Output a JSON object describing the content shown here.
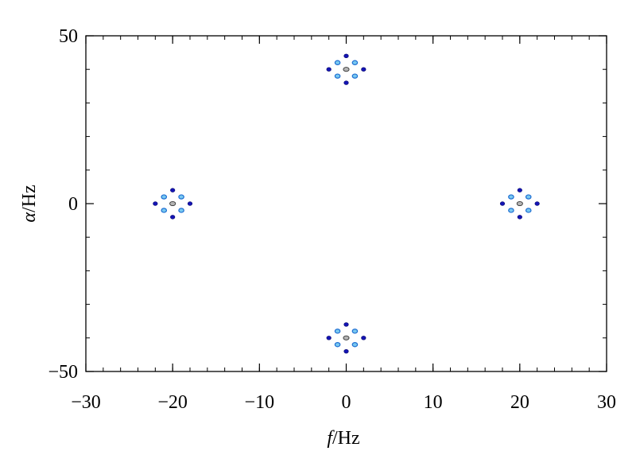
{
  "chart_data": {
    "type": "scatter",
    "title": "",
    "xlabel": {
      "symbol": "f",
      "unit": "/Hz"
    },
    "ylabel": {
      "symbol": "α",
      "unit": "/Hz"
    },
    "xlim": [
      -30,
      30
    ],
    "ylim": [
      -50,
      50
    ],
    "x_ticks": [
      {
        "value": -30,
        "label": "−30"
      },
      {
        "value": -20,
        "label": "−20"
      },
      {
        "value": -10,
        "label": "−10"
      },
      {
        "value": 0,
        "label": "0"
      },
      {
        "value": 10,
        "label": "10"
      },
      {
        "value": 20,
        "label": "20"
      },
      {
        "value": 30,
        "label": "30"
      }
    ],
    "y_ticks": [
      {
        "value": -50,
        "label": "−50"
      },
      {
        "value": 0,
        "label": "0"
      },
      {
        "value": 50,
        "label": "50"
      }
    ],
    "grid": false,
    "legend": "none",
    "colors": {
      "dark": "#1414b4",
      "mid": "#1e6ed2",
      "light": "#78c8f0",
      "center": "#b4b4b4"
    },
    "clusters": [
      {
        "f": 0,
        "alpha": 40
      },
      {
        "f": 0,
        "alpha": -40
      },
      {
        "f": -20,
        "alpha": 0
      },
      {
        "f": 20,
        "alpha": 0
      }
    ],
    "points": [
      {
        "f": 0,
        "alpha": 40,
        "level": "center"
      },
      {
        "f": 0,
        "alpha": 44,
        "level": "dark"
      },
      {
        "f": 0,
        "alpha": 36,
        "level": "dark"
      },
      {
        "f": -2,
        "alpha": 40,
        "level": "dark"
      },
      {
        "f": 2,
        "alpha": 40,
        "level": "dark"
      },
      {
        "f": -1,
        "alpha": 42,
        "level": "light"
      },
      {
        "f": 1,
        "alpha": 42,
        "level": "light"
      },
      {
        "f": -1,
        "alpha": 38,
        "level": "light"
      },
      {
        "f": 1,
        "alpha": 38,
        "level": "light"
      },
      {
        "f": 0,
        "alpha": -40,
        "level": "center"
      },
      {
        "f": 0,
        "alpha": -36,
        "level": "dark"
      },
      {
        "f": 0,
        "alpha": -44,
        "level": "dark"
      },
      {
        "f": -2,
        "alpha": -40,
        "level": "dark"
      },
      {
        "f": 2,
        "alpha": -40,
        "level": "dark"
      },
      {
        "f": -1,
        "alpha": -38,
        "level": "light"
      },
      {
        "f": 1,
        "alpha": -38,
        "level": "light"
      },
      {
        "f": -1,
        "alpha": -42,
        "level": "light"
      },
      {
        "f": 1,
        "alpha": -42,
        "level": "light"
      },
      {
        "f": -20,
        "alpha": 0,
        "level": "center"
      },
      {
        "f": -20,
        "alpha": 4,
        "level": "dark"
      },
      {
        "f": -20,
        "alpha": -4,
        "level": "dark"
      },
      {
        "f": -22,
        "alpha": 0,
        "level": "dark"
      },
      {
        "f": -18,
        "alpha": 0,
        "level": "dark"
      },
      {
        "f": -21,
        "alpha": 2,
        "level": "light"
      },
      {
        "f": -19,
        "alpha": 2,
        "level": "light"
      },
      {
        "f": -21,
        "alpha": -2,
        "level": "light"
      },
      {
        "f": -19,
        "alpha": -2,
        "level": "light"
      },
      {
        "f": 20,
        "alpha": 0,
        "level": "center"
      },
      {
        "f": 20,
        "alpha": 4,
        "level": "dark"
      },
      {
        "f": 20,
        "alpha": -4,
        "level": "dark"
      },
      {
        "f": 18,
        "alpha": 0,
        "level": "dark"
      },
      {
        "f": 22,
        "alpha": 0,
        "level": "dark"
      },
      {
        "f": 19,
        "alpha": 2,
        "level": "light"
      },
      {
        "f": 21,
        "alpha": 2,
        "level": "light"
      },
      {
        "f": 19,
        "alpha": -2,
        "level": "light"
      },
      {
        "f": 21,
        "alpha": -2,
        "level": "light"
      }
    ]
  }
}
